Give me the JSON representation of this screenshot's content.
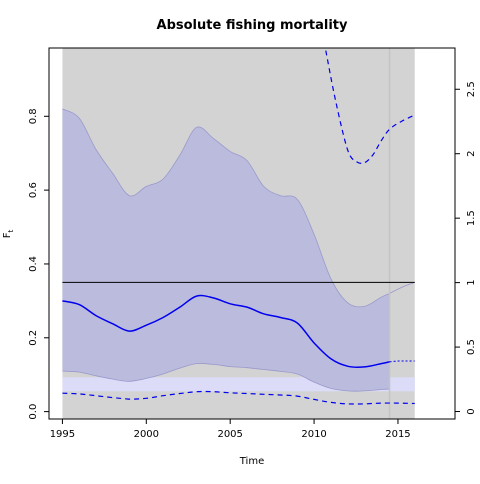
{
  "chart_data": {
    "type": "area",
    "title": "Absolute fishing mortality",
    "xlabel": "Time",
    "ylabel": "F",
    "ylabel_sub": "t",
    "ylabel_right": "",
    "xlim": [
      1994.2,
      2018.4
    ],
    "ylim": [
      -0.02,
      0.985
    ],
    "ylim_right": [
      -0.058,
      2.82
    ],
    "x_ticks": [
      1995,
      2000,
      2005,
      2010,
      2015
    ],
    "y_ticks": [
      0.0,
      0.2,
      0.4,
      0.6,
      0.8
    ],
    "y_ticks_right": [
      0,
      0.5,
      1,
      1.5,
      2,
      2.5
    ],
    "colors": {
      "grey_region": "#d3d3d3",
      "ci_band": "#bbbbdd",
      "ci_edge": "#9999cc",
      "projection_band": "#dcdcf8",
      "estimate": "#0000ee",
      "reference": "#000000"
    },
    "reference_line": {
      "y": 0.35,
      "x": [
        1995,
        2016
      ]
    },
    "grey_region": {
      "x": [
        1995,
        2016
      ]
    },
    "last_data_year": 2014.5,
    "series": [
      {
        "role": "estimate",
        "x": [
          1995,
          1996,
          1997,
          1998,
          1999,
          2000,
          2001,
          2002,
          2003,
          2004,
          2005,
          2006,
          2007,
          2008,
          2009,
          2010,
          2011,
          2012,
          2013,
          2014,
          2014.5
        ],
        "y": [
          0.3,
          0.29,
          0.26,
          0.238,
          0.218,
          0.234,
          0.255,
          0.283,
          0.313,
          0.308,
          0.292,
          0.283,
          0.265,
          0.255,
          0.24,
          0.186,
          0.143,
          0.123,
          0.121,
          0.13,
          0.135
        ]
      },
      {
        "role": "ci_upper",
        "x": [
          1995,
          1996,
          1997,
          1998,
          1999,
          2000,
          2001,
          2002,
          2003,
          2004,
          2005,
          2006,
          2007,
          2008,
          2009,
          2010,
          2011,
          2012,
          2013,
          2014,
          2014.5
        ],
        "y": [
          0.82,
          0.795,
          0.71,
          0.645,
          0.585,
          0.61,
          0.63,
          0.695,
          0.77,
          0.74,
          0.705,
          0.68,
          0.61,
          0.585,
          0.575,
          0.48,
          0.36,
          0.295,
          0.285,
          0.31,
          0.32
        ]
      },
      {
        "role": "ci_lower",
        "x": [
          1995,
          1996,
          1997,
          1998,
          1999,
          2000,
          2001,
          2002,
          2003,
          2004,
          2005,
          2006,
          2007,
          2008,
          2009,
          2010,
          2011,
          2012,
          2013,
          2014,
          2014.5
        ],
        "y": [
          0.11,
          0.107,
          0.097,
          0.088,
          0.082,
          0.09,
          0.102,
          0.118,
          0.13,
          0.128,
          0.122,
          0.119,
          0.114,
          0.109,
          0.102,
          0.08,
          0.063,
          0.056,
          0.056,
          0.06,
          0.061
        ]
      },
      {
        "role": "estimate_projection",
        "x": [
          2014.5,
          2015,
          2015.5,
          2016
        ],
        "y": [
          0.135,
          0.137,
          0.137,
          0.137
        ]
      },
      {
        "role": "ci_upper_projection",
        "x": [
          2014.5,
          2015,
          2015.5,
          2016
        ],
        "y": [
          0.32,
          0.332,
          0.342,
          0.35
        ]
      },
      {
        "role": "projection_band",
        "x": [
          1995,
          2016
        ],
        "lower": [
          0.055,
          0.055
        ],
        "upper": [
          0.093,
          0.093
        ]
      },
      {
        "role": "relative_F_right_axis",
        "x": [
          2010.7,
          2011.3,
          2012.0,
          2012.5,
          2013.0,
          2013.5,
          2014.0,
          2014.5,
          2015.2,
          2016.0
        ],
        "y": [
          2.8,
          2.4,
          2.03,
          1.94,
          1.93,
          1.99,
          2.1,
          2.19,
          2.25,
          2.3
        ],
        "dashed": true
      },
      {
        "role": "lower_dashed",
        "x": [
          1995,
          1996,
          1997,
          1998,
          1999,
          2000,
          2001,
          2002,
          2003,
          2004,
          2005,
          2006,
          2007,
          2008,
          2009,
          2010,
          2011,
          2012,
          2013,
          2014,
          2015,
          2016
        ],
        "y": [
          0.05,
          0.048,
          0.043,
          0.038,
          0.034,
          0.036,
          0.043,
          0.049,
          0.054,
          0.054,
          0.051,
          0.049,
          0.047,
          0.045,
          0.042,
          0.033,
          0.025,
          0.021,
          0.021,
          0.023,
          0.023,
          0.022
        ],
        "dashed": true
      }
    ]
  }
}
